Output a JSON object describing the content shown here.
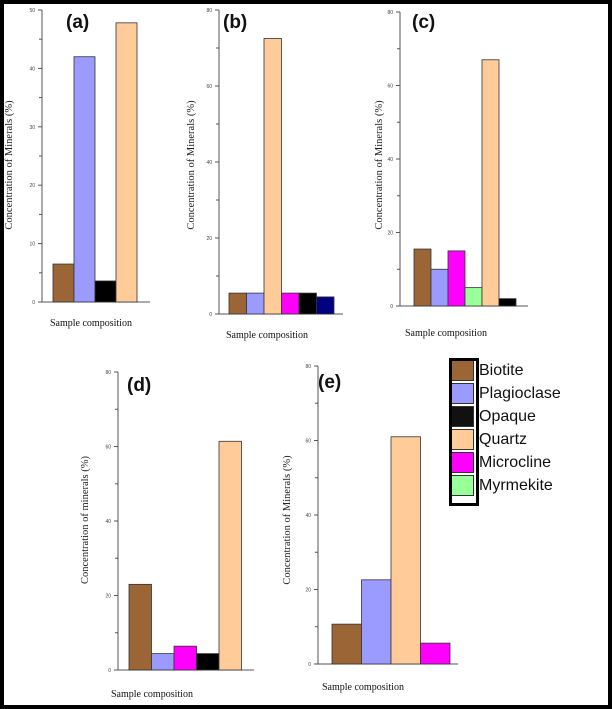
{
  "figure": {
    "legend": {
      "items": [
        {
          "name": "Biotite",
          "color": "#9c6535"
        },
        {
          "name": "Plagioclase",
          "color": "#9b9bff"
        },
        {
          "name": "Opaque",
          "color": "#111111"
        },
        {
          "name": "Quartz",
          "color": "#ffcc99"
        },
        {
          "name": "Microcline",
          "color": "#ff00ff"
        },
        {
          "name": "Myrmekite",
          "color": "#99ff99"
        }
      ]
    }
  },
  "chart_data": [
    {
      "type": "bar",
      "panel": "(a)",
      "ylabel": "Concentration of Minerals (%)",
      "xlabel": "Sample composition",
      "ylim": [
        0,
        50
      ],
      "yticks": [
        "0",
        "10",
        "20",
        "30",
        "40",
        "50"
      ],
      "categories": [
        "Biotite",
        "Plagioclase",
        "Opaque",
        "Quartz"
      ],
      "colors": [
        "#9c6535",
        "#9b9bff",
        "#000000",
        "#ffcc99"
      ],
      "values": [
        6.5,
        42,
        3.6,
        47.8
      ]
    },
    {
      "type": "bar",
      "panel": "(b)",
      "ylabel": "Concentration of Minerals (%)",
      "xlabel": "Sample composition",
      "ylim": [
        0,
        80
      ],
      "yticks": [
        "0",
        "20",
        "40",
        "60",
        "80"
      ],
      "categories": [
        "Biotite",
        "Plagioclase",
        "Quartz",
        "Microcline",
        "Opaque",
        "(unlabeled navy)"
      ],
      "colors": [
        "#9c6535",
        "#9b9bff",
        "#ffcc99",
        "#ff00ff",
        "#000000",
        "#000080"
      ],
      "values": [
        5.5,
        5.5,
        72.5,
        5.5,
        5.5,
        4.5
      ]
    },
    {
      "type": "bar",
      "panel": "(c)",
      "ylabel": "Concentration of Minerals (%)",
      "xlabel": "Sample composition",
      "ylim": [
        0,
        80
      ],
      "yticks": [
        "0",
        "20",
        "40",
        "60",
        "80"
      ],
      "categories": [
        "Biotite",
        "Plagioclase",
        "Microcline",
        "Myrmekite",
        "Quartz",
        "Opaque"
      ],
      "colors": [
        "#9c6535",
        "#9b9bff",
        "#ff00ff",
        "#99ff99",
        "#ffcc99",
        "#000000"
      ],
      "values": [
        15.5,
        10,
        15,
        5,
        67,
        2
      ]
    },
    {
      "type": "bar",
      "panel": "(d)",
      "ylabel": "Concentration of minerals (%)",
      "xlabel": "Sample composition",
      "ylim": [
        0,
        80
      ],
      "yticks": [
        "0",
        "20",
        "40",
        "60",
        "80"
      ],
      "categories": [
        "Biotite",
        "Plagioclase",
        "Microcline",
        "Opaque",
        "Quartz"
      ],
      "colors": [
        "#9c6535",
        "#9b9bff",
        "#ff00ff",
        "#000000",
        "#ffcc99"
      ],
      "values": [
        23,
        4.4,
        6.4,
        4.4,
        61.4
      ]
    },
    {
      "type": "bar",
      "panel": "(e)",
      "ylabel": "Concentration of Minerals (%)",
      "xlabel": "Sample composition",
      "ylim": [
        0,
        80
      ],
      "yticks": [
        "0",
        "20",
        "40",
        "60",
        "80"
      ],
      "categories": [
        "Biotite",
        "Plagioclase",
        "Quartz",
        "Microcline"
      ],
      "colors": [
        "#9c6535",
        "#9b9bff",
        "#ffcc99",
        "#ff00ff"
      ],
      "values": [
        10.7,
        22.6,
        61,
        5.6
      ]
    }
  ]
}
